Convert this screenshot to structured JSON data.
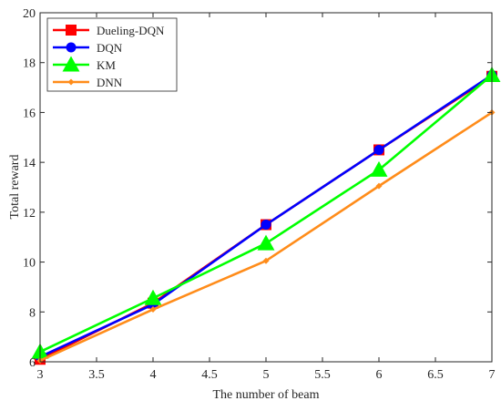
{
  "chart_data": {
    "type": "line",
    "title": "",
    "xlabel": "The number of beam",
    "ylabel": "Total reward",
    "xlim": [
      3,
      7
    ],
    "ylim": [
      6,
      20
    ],
    "xticks": [
      3,
      3.5,
      4,
      4.5,
      5,
      5.5,
      6,
      6.5,
      7
    ],
    "yticks": [
      6,
      8,
      10,
      12,
      14,
      16,
      18,
      20
    ],
    "xtick_labels": [
      "3",
      "3.5",
      "4",
      "4.5",
      "5",
      "5.5",
      "6",
      "6.5",
      "7"
    ],
    "ytick_labels": [
      "6",
      "8",
      "10",
      "12",
      "14",
      "16",
      "18",
      "20"
    ],
    "grid": false,
    "legend_position": "top-left",
    "x": [
      3,
      4,
      5,
      6,
      7
    ],
    "series": [
      {
        "name": "Dueling-DQN",
        "values": [
          6.1,
          8.35,
          11.5,
          14.5,
          17.45
        ],
        "color": "#ff0000",
        "marker": "square"
      },
      {
        "name": "DQN",
        "values": [
          6.2,
          8.3,
          11.5,
          14.5,
          17.5
        ],
        "color": "#0000ff",
        "marker": "circle"
      },
      {
        "name": "KM",
        "values": [
          6.4,
          8.55,
          10.75,
          13.7,
          17.5
        ],
        "color": "#00ff00",
        "marker": "triangle"
      },
      {
        "name": "DNN",
        "values": [
          6.05,
          8.1,
          10.05,
          13.05,
          16.0
        ],
        "color": "#ff8c1a",
        "marker": "diamond"
      }
    ]
  }
}
